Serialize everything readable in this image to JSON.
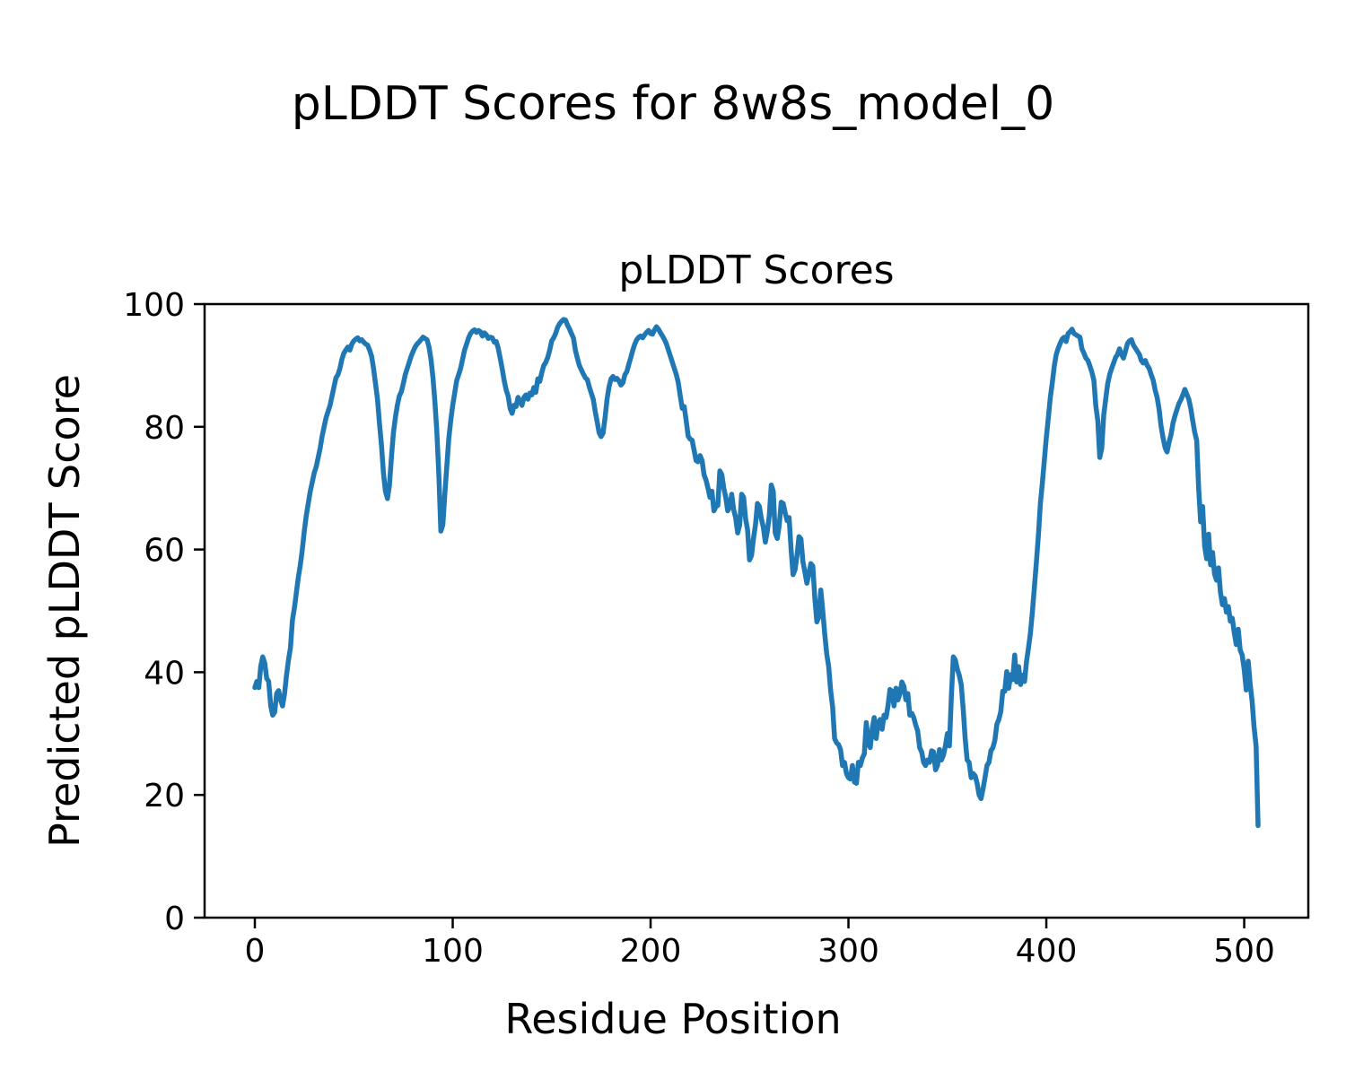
{
  "figure": {
    "suptitle": "pLDDT Scores for 8w8s_model_0",
    "background_color": "#ffffff",
    "text_color": "#000000"
  },
  "chart_data": {
    "type": "line",
    "title": "pLDDT Scores",
    "xlabel": "Residue Position",
    "ylabel": "Predicted pLDDT Score",
    "xlim": [
      -25.4,
      532.4
    ],
    "ylim": [
      0,
      100
    ],
    "xticks": [
      0,
      100,
      200,
      300,
      400,
      500
    ],
    "yticks": [
      0,
      20,
      40,
      60,
      80,
      100
    ],
    "grid": false,
    "legend": "none",
    "series": [
      {
        "name": "pLDDT",
        "color": "#1f77b4",
        "line_width": 5.5,
        "x_start": 0,
        "x_step": 1,
        "y": [
          37.5,
          38.5,
          37.5,
          41,
          42.5,
          41.5,
          39,
          38.5,
          34.5,
          33,
          33.5,
          36.5,
          37,
          35.5,
          34.5,
          36.5,
          39.5,
          42,
          44,
          48.5,
          50.5,
          53,
          55.5,
          57.5,
          60,
          63,
          65.5,
          67.5,
          69.5,
          71,
          72.5,
          73.5,
          75,
          76.5,
          78.5,
          80,
          81.5,
          82.5,
          83.5,
          85,
          86.5,
          88,
          88.5,
          89.5,
          91,
          92,
          92.5,
          93,
          92.5,
          93.5,
          94,
          94.3,
          94.5,
          94,
          94.2,
          93.8,
          93.5,
          93.3,
          92.5,
          91.5,
          89.5,
          87,
          84.5,
          80.5,
          77,
          72.5,
          69.5,
          68.3,
          70.5,
          75,
          79,
          81.5,
          83.5,
          85,
          85.7,
          87,
          88.5,
          89.5,
          90.5,
          91.5,
          92.3,
          93,
          93.5,
          93.8,
          94.2,
          94.6,
          94.4,
          94.2,
          93,
          91,
          88,
          84,
          79,
          72,
          63,
          64,
          69,
          73.5,
          78,
          81,
          83.5,
          85.5,
          87.5,
          88.5,
          89.5,
          91,
          92.5,
          93.5,
          94.5,
          95.2,
          95.6,
          95.8,
          95.4,
          95.7,
          95.5,
          94.8,
          95.3,
          95,
          94.4,
          94.6,
          94.5,
          93.8,
          93.9,
          92.8,
          91.2,
          89.5,
          87.5,
          86,
          85,
          83,
          82.2,
          83.5,
          83.3,
          84.8,
          84.2,
          83.5,
          84.8,
          85.2,
          84.5,
          85.5,
          85.2,
          86.4,
          85.6,
          87.8,
          87.4,
          88.8,
          90,
          90.5,
          91.3,
          92.5,
          94,
          94.5,
          95.2,
          96.2,
          96.8,
          97.2,
          97.5,
          97.4,
          96.6,
          96,
          95.2,
          94.5,
          92.5,
          91.2,
          90,
          89.3,
          88.6,
          88,
          87.7,
          86.5,
          85.5,
          84.5,
          82.5,
          80.8,
          79,
          78.4,
          79,
          81.5,
          84.5,
          86.5,
          87.8,
          88.2,
          87.7,
          87.9,
          87.5,
          86.8,
          87.2,
          88.5,
          89,
          90.2,
          91.3,
          92.5,
          93.5,
          94.2,
          94.6,
          94.8,
          94.5,
          95,
          95.4,
          95.7,
          95.2,
          95.1,
          95.8,
          96.3,
          95.9,
          95.3,
          94.8,
          94.2,
          93.5,
          92.5,
          91.5,
          90.5,
          89.5,
          88.5,
          87.2,
          85,
          83,
          83.3,
          81,
          78.5,
          78,
          77.8,
          76.2,
          74.5,
          74.3,
          75.3,
          74.5,
          72.2,
          71.3,
          70,
          68.5,
          69.5,
          66.3,
          67,
          67.2,
          72.8,
          72.2,
          70,
          68.5,
          66.3,
          67,
          69,
          66.5,
          65.2,
          62.7,
          64,
          69,
          68.5,
          65,
          63.2,
          58.3,
          59,
          61.8,
          64,
          67.5,
          67,
          65,
          63.6,
          61.2,
          63,
          65.5,
          70.5,
          69.5,
          62.7,
          61.8,
          64,
          67.7,
          67.5,
          66,
          64.7,
          65.2,
          60,
          55.9,
          56.7,
          59,
          62.1,
          61.7,
          58,
          56.3,
          54.5,
          56,
          57.7,
          57.3,
          52,
          48.2,
          49,
          53.4,
          50,
          46.2,
          43,
          40.9,
          37,
          34.3,
          29.2,
          28.5,
          28.2,
          27.4,
          24.8,
          25.3,
          23.5,
          22.8,
          22.6,
          24.8,
          22.1,
          21.9,
          25.3,
          24.8,
          26,
          26.7,
          31.8,
          28.5,
          27.7,
          30.8,
          32.6,
          29.2,
          31.8,
          32.3,
          30.7,
          33,
          32.6,
          34.5,
          37.2,
          36.9,
          34.5,
          37.4,
          35.5,
          36.5,
          38.4,
          37.7,
          35.5,
          36.5,
          33,
          33.3,
          32.6,
          31.4,
          30.4,
          27.7,
          27,
          25.3,
          24.8,
          25.7,
          25.3,
          27.2,
          27,
          24.1,
          24.8,
          27.4,
          25.7,
          26.5,
          28,
          30,
          28,
          36,
          42.5,
          42,
          40.5,
          39.5,
          38,
          34,
          29.2,
          25.7,
          25.3,
          22.8,
          23.5,
          23.1,
          21.9,
          20,
          19.4,
          21,
          22.8,
          24.8,
          25.3,
          27.2,
          27.7,
          28.9,
          31.5,
          32.3,
          33.6,
          36.9,
          36.9,
          40.1,
          37.4,
          39.6,
          38.8,
          42.8,
          38.4,
          40.9,
          38,
          39.5,
          38.5,
          41.8,
          44,
          46.5,
          50,
          54,
          58,
          62.3,
          67.5,
          70.8,
          74.5,
          78.2,
          81.5,
          84.8,
          87.2,
          89.9,
          91.8,
          92.8,
          93.6,
          94.3,
          94.6,
          93.9,
          95.2,
          95.5,
          95.9,
          95.2,
          95,
          94.8,
          94.6,
          92.7,
          92,
          91.2,
          90.8,
          89.9,
          88.9,
          87.6,
          83.4,
          81,
          75,
          76.5,
          81.9,
          84.5,
          87,
          88.5,
          89.5,
          90.4,
          91.3,
          91.8,
          92.7,
          91.8,
          91.2,
          92.3,
          93.6,
          94,
          94.2,
          93.3,
          92.8,
          92.3,
          91.8,
          90.8,
          90.4,
          90.8,
          90,
          89.5,
          88.5,
          87.6,
          86,
          84.8,
          82.9,
          80.1,
          78.2,
          76.6,
          75.9,
          77.5,
          78.7,
          80.6,
          81.8,
          82.8,
          83.8,
          84.4,
          85.2,
          86.1,
          85.3,
          84.5,
          83,
          81,
          79.1,
          77.8,
          70,
          64.5,
          67,
          60.5,
          58.5,
          62.5,
          57.5,
          59.5,
          56,
          55,
          57,
          53,
          51,
          52,
          49.8,
          50.7,
          48.3,
          48.8,
          46.4,
          44.5,
          47,
          43.6,
          42.8,
          40.4,
          37.1,
          41.8,
          38.1,
          35.2,
          31,
          28,
          15
        ]
      }
    ]
  }
}
